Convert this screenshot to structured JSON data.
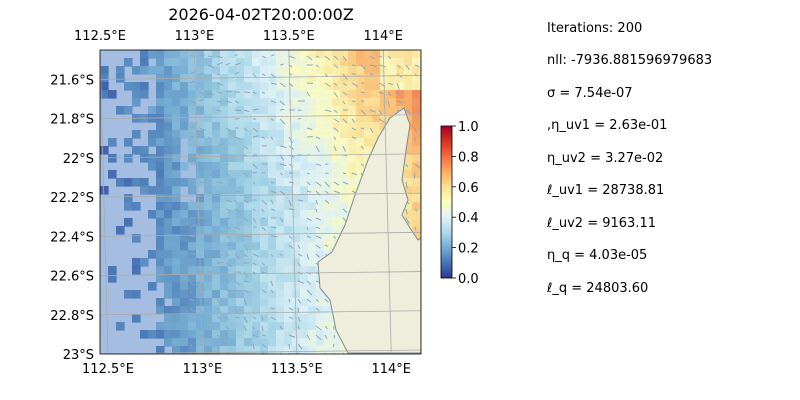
{
  "chart_data": {
    "type": "heatmap",
    "title": "2026-04-02T20:00:00Z",
    "xlim": [
      112.5,
      114.2
    ],
    "ylim": [
      -23.0,
      -21.45
    ],
    "x_ticks": [
      112.5,
      113.0,
      113.5,
      114.0
    ],
    "x_tick_labels": [
      "112.5°E",
      "113°E",
      "113.5°E",
      "114°E"
    ],
    "y_ticks": [
      -21.6,
      -21.8,
      -22.0,
      -22.2,
      -22.4,
      -22.6,
      -22.8,
      -23.0
    ],
    "y_tick_labels": [
      "21.6°S",
      "21.8°S",
      "22°S",
      "22.2°S",
      "22.4°S",
      "22.6°S",
      "22.8°S",
      "23°S"
    ],
    "grid": true,
    "colorbar": {
      "min": 0.0,
      "max": 1.0,
      "ticks": [
        0.0,
        0.2,
        0.4,
        0.6,
        0.8,
        1.0
      ],
      "tick_labels": [
        "0.0",
        "0.2",
        "0.4",
        "0.6",
        "0.8",
        "1.0"
      ],
      "colormap": "RdYlBu_r"
    },
    "colors": {
      "ocean_mask": "#a4bde0",
      "land": "#efeedd",
      "coastline": "#7a8a9a",
      "grid": "#aaaaaa",
      "vectors": "#8fa4b8"
    }
  },
  "stats": [
    "Iterations: 200",
    "nll: -7936.881596979683",
    "σ = 7.54e-07",
    ",η_uv1 = 2.63e-01",
    "η_uv2 = 3.27e-02",
    "ℓ_uv1 = 28738.81",
    "ℓ_uv2 = 9163.11",
    "η_q = 4.03e-05",
    "ℓ_q = 24803.60"
  ]
}
